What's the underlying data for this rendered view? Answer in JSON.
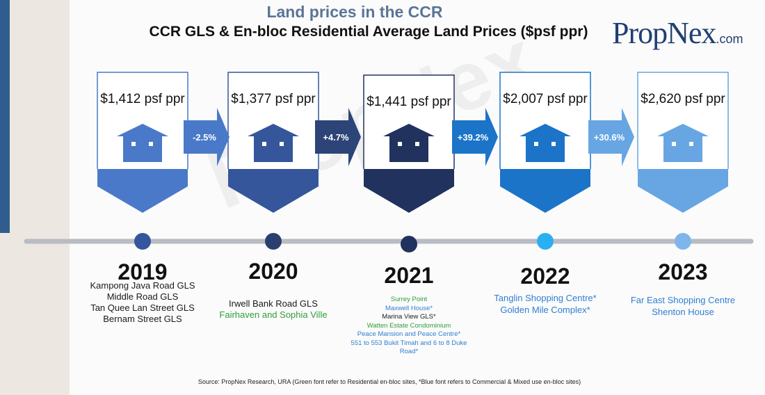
{
  "header": {
    "title": "Land prices in the CCR",
    "subtitle": "CCR GLS & En-bloc Residential Average Land Prices ($psf ppr)",
    "logo_main": "PropNex",
    "logo_suffix": ".com",
    "watermark": "PropNex"
  },
  "colors": {
    "black": "#1a1a1a",
    "green": "#2e9d3a",
    "blue": "#2f7fd1",
    "track": "#b9bcc2"
  },
  "chart_data": {
    "type": "timeline",
    "title": "CCR GLS & En-bloc Residential Average Land Prices ($psf ppr)",
    "unit": "$psf ppr",
    "years": [
      {
        "year": "2019",
        "price": 1412,
        "price_label": "$1,412 psf ppr",
        "color": "#4a79c9",
        "dot_color": "#34569c",
        "sites": [
          {
            "text": "Kampong Java Road GLS",
            "type": "black"
          },
          {
            "text": "Middle Road GLS",
            "type": "black"
          },
          {
            "text": "Tan Quee Lan Street GLS",
            "type": "black"
          },
          {
            "text": "Bernam Street GLS",
            "type": "black"
          }
        ]
      },
      {
        "year": "2020",
        "price": 1377,
        "price_label": "$1,377 psf ppr",
        "color": "#35569b",
        "dot_color": "#2b3f6e",
        "sites": [
          {
            "text": "Irwell Bank Road GLS",
            "type": "black"
          },
          {
            "text": "Fairhaven and Sophia Ville",
            "type": "green"
          }
        ]
      },
      {
        "year": "2021",
        "price": 1441,
        "price_label": "$1,441 psf ppr",
        "color": "#22325e",
        "dot_color": "#22325e",
        "sites": [
          {
            "text": "Surrey Point",
            "type": "green"
          },
          {
            "text": "Maxwell House*",
            "type": "blue"
          },
          {
            "text": "Marina View GLS*",
            "type": "black"
          },
          {
            "text": "Watten Estate Condominium",
            "type": "green"
          },
          {
            "text": "Peace Mansion and Peace Centre*",
            "type": "blue"
          },
          {
            "text": "551 to 553 Bukit Timah and 6 to 8 Duke Road*",
            "type": "blue"
          }
        ]
      },
      {
        "year": "2022",
        "price": 2007,
        "price_label": "$2,007 psf ppr",
        "color": "#1b74c8",
        "dot_color": "#2ab0f0",
        "sites": [
          {
            "text": "Tanglin Shopping Centre*",
            "type": "blue"
          },
          {
            "text": "Golden Mile Complex*",
            "type": "blue"
          }
        ]
      },
      {
        "year": "2023",
        "price": 2620,
        "price_label": "$2,620 psf ppr",
        "color": "#67a6e3",
        "dot_color": "#7fb5ea",
        "sites": [
          {
            "text": "Far East Shopping Centre",
            "type": "blue"
          },
          {
            "text": "Shenton House",
            "type": "blue"
          }
        ]
      }
    ],
    "changes": [
      {
        "label": "-2.5%",
        "value": -2.5,
        "color": "#4a79c9"
      },
      {
        "label": "+4.7%",
        "value": 4.7,
        "color": "#2c4477"
      },
      {
        "label": "+39.2%",
        "value": 39.2,
        "color": "#1b74c8"
      },
      {
        "label": "+30.6%",
        "value": 30.6,
        "color": "#67a6e3"
      }
    ]
  },
  "footer": {
    "source": "Source: PropNex Research, URA (Green font refer to Residential en-bloc sites, *Blue font refers to Commercial & Mixed use en-bloc sites)"
  }
}
